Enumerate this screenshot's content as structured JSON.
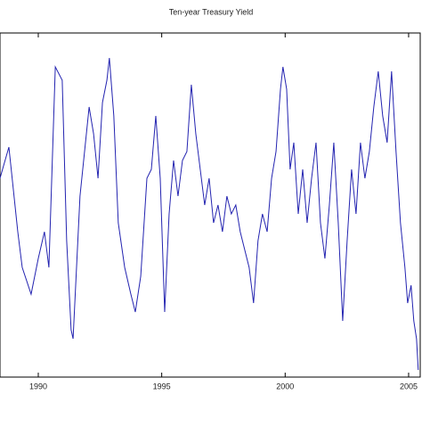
{
  "chart_data": {
    "type": "line",
    "title": "Ten-year Treasury Yield",
    "x": [
      1988.45,
      1988.81,
      1989.17,
      1989.35,
      1989.71,
      1990.0,
      1990.25,
      1990.43,
      1990.69,
      1990.97,
      1991.15,
      1991.33,
      1991.41,
      1991.69,
      1992.06,
      1992.24,
      1992.42,
      1992.6,
      1992.78,
      1992.88,
      1993.06,
      1993.24,
      1993.5,
      1993.75,
      1993.93,
      1994.15,
      1994.4,
      1994.58,
      1994.76,
      1994.94,
      1995.12,
      1995.3,
      1995.48,
      1995.66,
      1995.84,
      1996.02,
      1996.2,
      1996.38,
      1996.56,
      1996.74,
      1996.92,
      1997.1,
      1997.28,
      1997.46,
      1997.64,
      1997.82,
      1998.0,
      1998.18,
      1998.36,
      1998.54,
      1998.72,
      1998.9,
      1999.08,
      1999.27,
      1999.45,
      1999.63,
      1999.81,
      1999.91,
      2000.06,
      2000.2,
      2000.35,
      2000.53,
      2000.71,
      2000.89,
      2001.07,
      2001.25,
      2001.43,
      2001.61,
      2001.79,
      2001.97,
      2002.15,
      2002.33,
      2002.51,
      2002.69,
      2002.87,
      2003.05,
      2003.23,
      2003.41,
      2003.59,
      2003.77,
      2003.95,
      2004.13,
      2004.31,
      2004.49,
      2004.67,
      2004.85,
      2004.96,
      2005.1,
      2005.21,
      2005.32,
      2005.39
    ],
    "series": [
      {
        "name": "Ten-year Treasury Yield",
        "color": "#2323b0",
        "values": [
          223,
          258,
          163,
          123,
          93,
          133,
          163,
          123,
          348,
          333,
          153,
          53,
          43,
          203,
          303,
          273,
          223,
          308,
          333,
          358,
          293,
          173,
          123,
          93,
          73,
          113,
          223,
          233,
          293,
          223,
          73,
          183,
          243,
          203,
          243,
          253,
          328,
          273,
          233,
          193,
          223,
          173,
          193,
          163,
          203,
          183,
          193,
          163,
          143,
          123,
          83,
          153,
          183,
          163,
          223,
          253,
          323,
          348,
          323,
          233,
          263,
          183,
          233,
          173,
          223,
          263,
          173,
          133,
          193,
          263,
          173,
          63,
          153,
          233,
          183,
          263,
          223,
          253,
          303,
          343,
          293,
          263,
          343,
          253,
          173,
          123,
          83,
          103,
          63,
          43,
          8
        ]
      }
    ],
    "xlim": [
      1988.45,
      2005.47
    ],
    "xticks": [
      1990,
      1995,
      2000,
      2005
    ],
    "ylim": [
      0,
      386
    ]
  }
}
